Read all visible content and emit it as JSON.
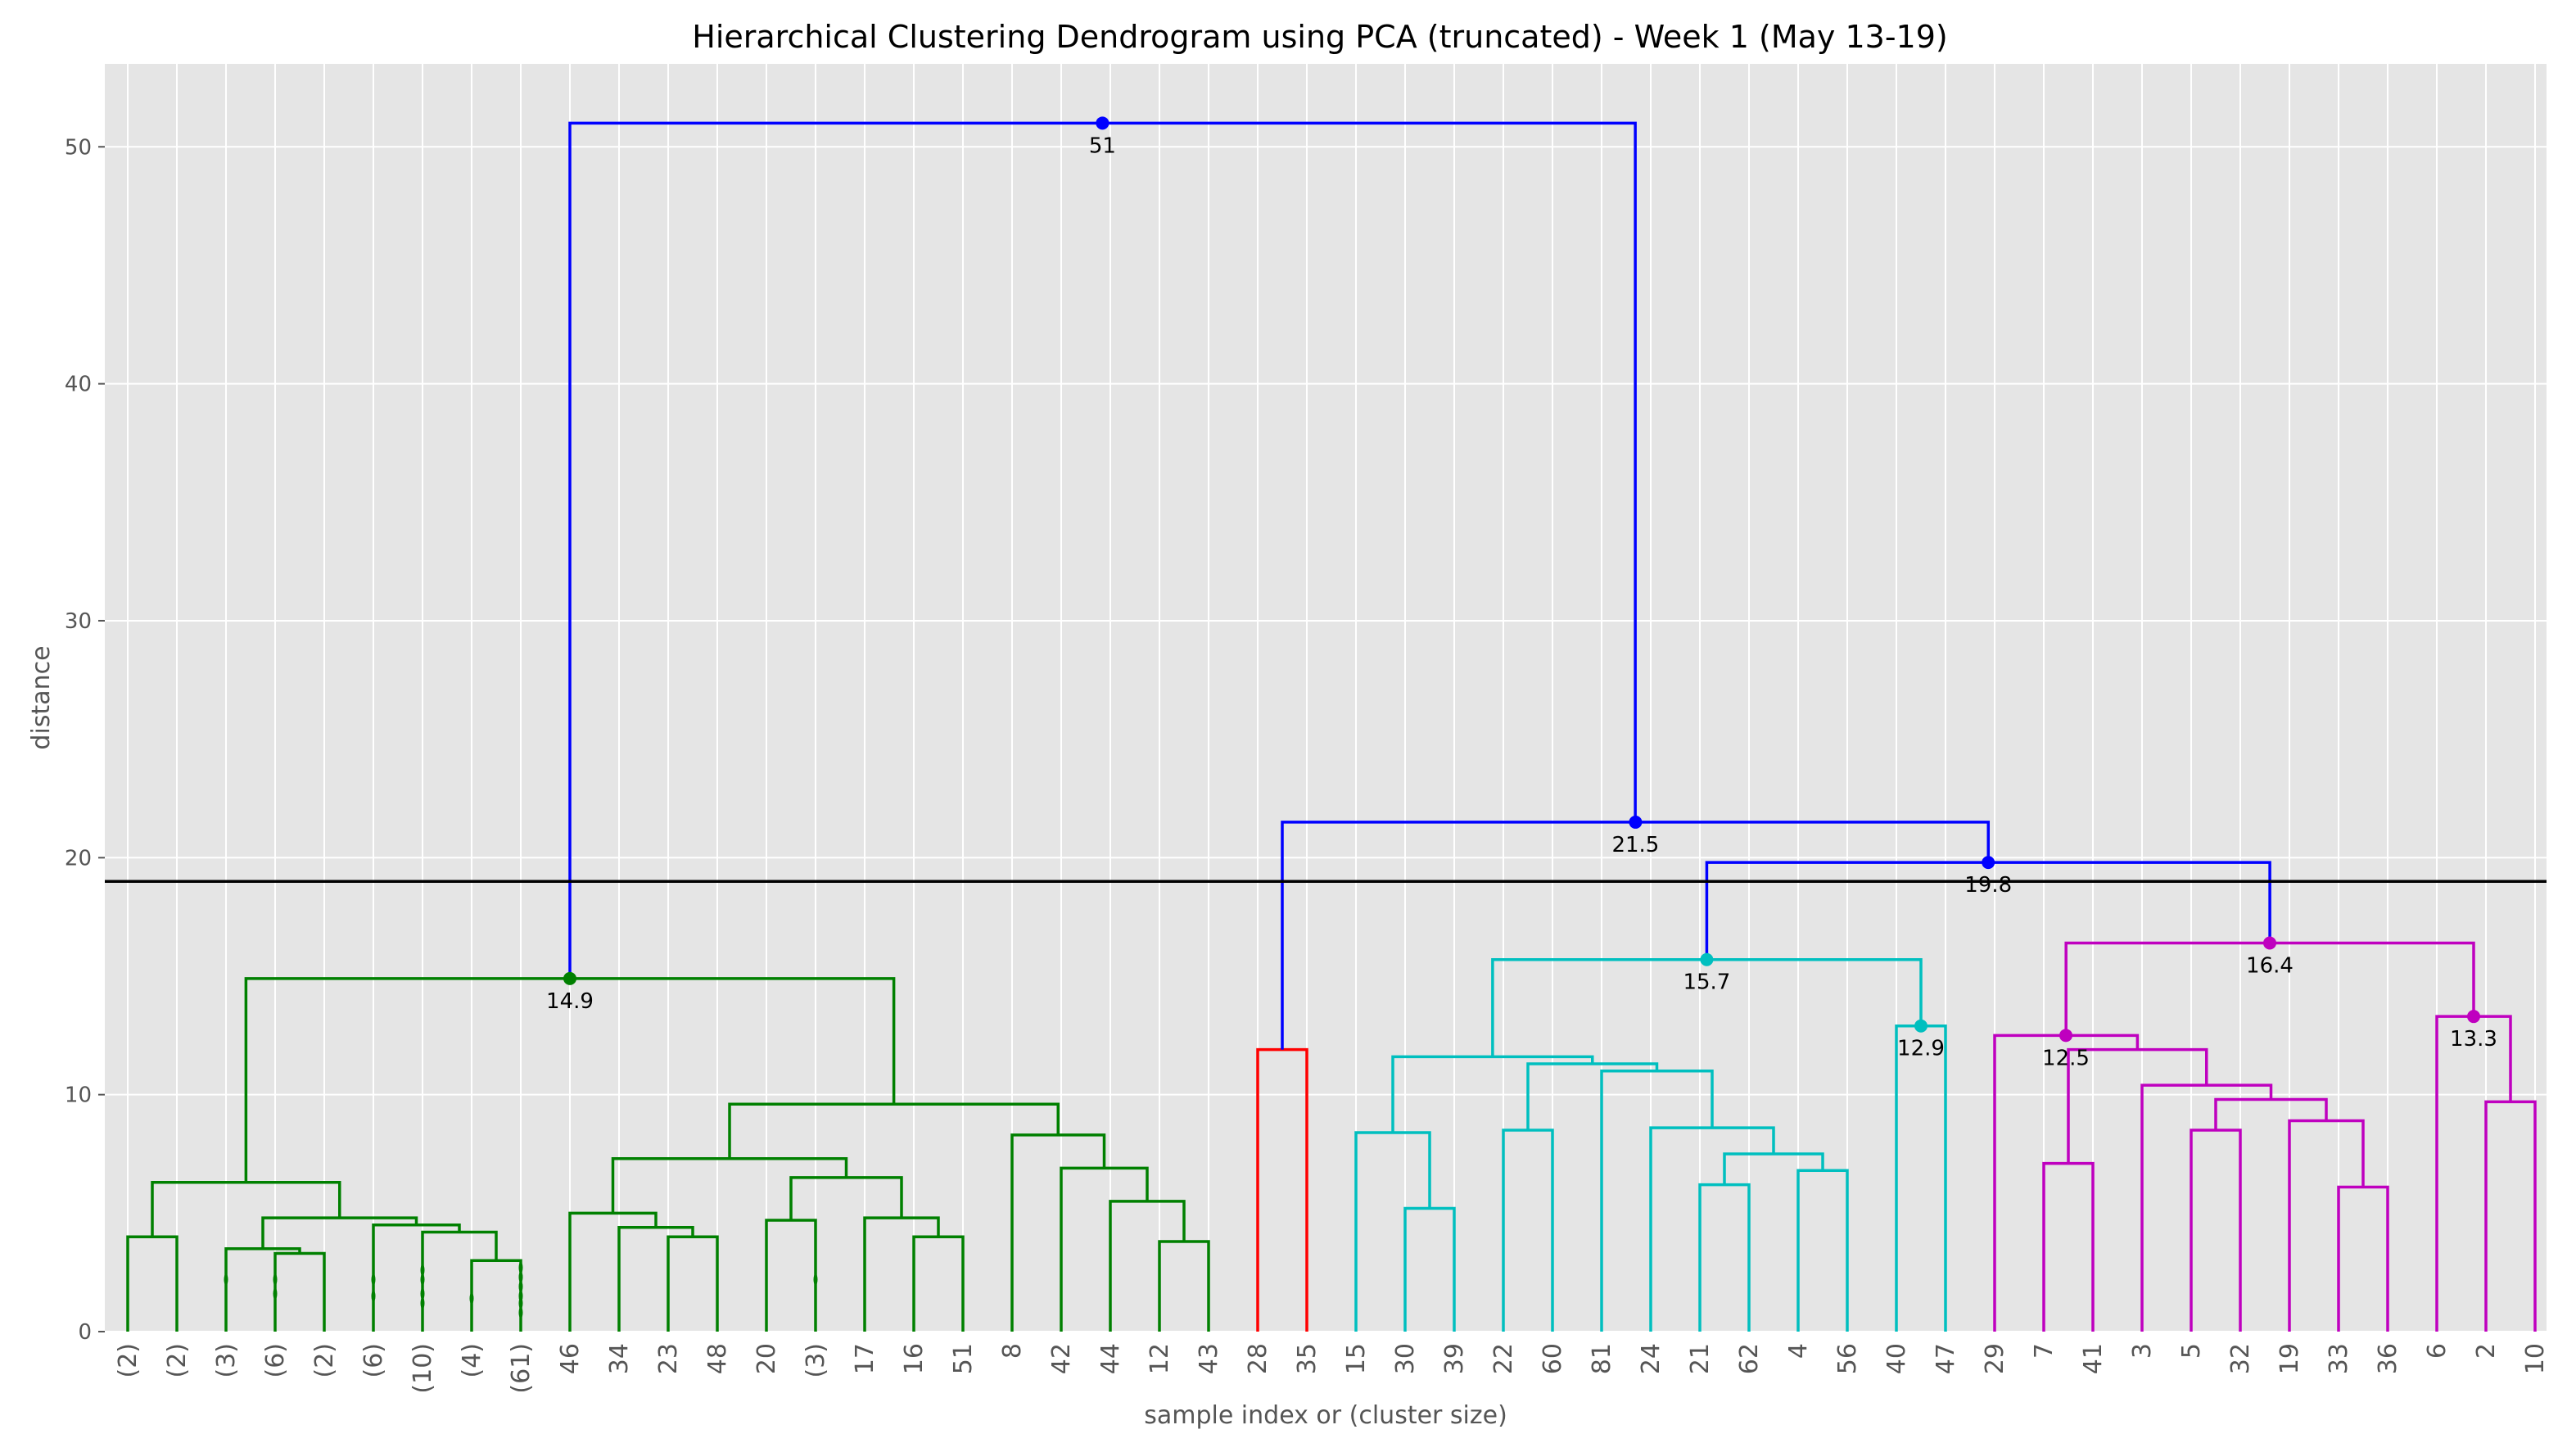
{
  "chart_data": {
    "type": "dendrogram",
    "title": "Hierarchical Clustering Dendrogram using PCA (truncated) - Week 1 (May 13-19)",
    "xlabel": "sample index or (cluster size)",
    "ylabel": "distance",
    "ylim": [
      0,
      53.5
    ],
    "yticks": [
      0,
      10,
      20,
      30,
      40,
      50
    ],
    "grid": true,
    "cut_line": 19.0,
    "colors": {
      "background": "#e5e5e5",
      "grid": "#ffffff",
      "green": "#008000",
      "red": "#ff0000",
      "cyan": "#00bfbf",
      "magenta": "#bf00bf",
      "blue": "#0000ff",
      "cut_line": "#000000"
    },
    "leaves": [
      "(2)",
      "(2)",
      "(3)",
      "(6)",
      "(2)",
      "(6)",
      "(10)",
      "(4)",
      "(61)",
      "46",
      "34",
      "23",
      "48",
      "20",
      "(3)",
      "17",
      "16",
      "51",
      "8",
      "42",
      "44",
      "12",
      "43",
      "28",
      "35",
      "15",
      "30",
      "39",
      "22",
      "60",
      "81",
      "24",
      "21",
      "62",
      "4",
      "56",
      "40",
      "47",
      "29",
      "7",
      "41",
      "3",
      "5",
      "32",
      "19",
      "33",
      "36",
      "6",
      "2",
      "10"
    ],
    "links": [
      {
        "icoord": [
          0,
          1
        ],
        "height": 4.0,
        "color": "green"
      },
      {
        "icoord": [
          3,
          4
        ],
        "height": 3.3,
        "color": "green"
      },
      {
        "icoord": [
          2,
          3.5
        ],
        "height": 3.5,
        "color": "green"
      },
      {
        "icoord": [
          7,
          8
        ],
        "height": 3.0,
        "color": "green"
      },
      {
        "icoord": [
          6,
          7.5
        ],
        "height": 4.2,
        "color": "green"
      },
      {
        "icoord": [
          5,
          6.75
        ],
        "height": 4.5,
        "color": "green"
      },
      {
        "icoord": [
          2.75,
          5.875
        ],
        "height": 4.8,
        "color": "green"
      },
      {
        "icoord": [
          0.5,
          4.3125
        ],
        "height": 6.3,
        "color": "green"
      },
      {
        "icoord": [
          11,
          12
        ],
        "height": 4.0,
        "color": "green"
      },
      {
        "icoord": [
          10,
          11.5
        ],
        "height": 4.4,
        "color": "green"
      },
      {
        "icoord": [
          9,
          10.75
        ],
        "height": 5.0,
        "color": "green"
      },
      {
        "icoord": [
          13,
          14
        ],
        "height": 4.7,
        "color": "green"
      },
      {
        "icoord": [
          16,
          17
        ],
        "height": 4.0,
        "color": "green"
      },
      {
        "icoord": [
          15,
          16.5
        ],
        "height": 4.8,
        "color": "green"
      },
      {
        "icoord": [
          13.5,
          15.75
        ],
        "height": 6.5,
        "color": "green"
      },
      {
        "icoord": [
          9.875,
          14.625
        ],
        "height": 7.3,
        "color": "green"
      },
      {
        "icoord": [
          21,
          22
        ],
        "height": 3.8,
        "color": "green"
      },
      {
        "icoord": [
          20,
          21.5
        ],
        "height": 5.5,
        "color": "green"
      },
      {
        "icoord": [
          19,
          20.75
        ],
        "height": 6.9,
        "color": "green"
      },
      {
        "icoord": [
          18,
          19.875
        ],
        "height": 8.3,
        "color": "green"
      },
      {
        "icoord": [
          12.25,
          18.9375
        ],
        "height": 9.6,
        "color": "green"
      },
      {
        "icoord": [
          2.40625,
          15.59375
        ],
        "height": 14.9,
        "color": "green"
      },
      {
        "icoord": [
          23,
          24
        ],
        "height": 11.9,
        "color": "red"
      },
      {
        "icoord": [
          26,
          27
        ],
        "height": 5.2,
        "color": "cyan"
      },
      {
        "icoord": [
          25,
          26.5
        ],
        "height": 8.4,
        "color": "cyan"
      },
      {
        "icoord": [
          28,
          29
        ],
        "height": 8.5,
        "color": "cyan"
      },
      {
        "icoord": [
          32,
          33
        ],
        "height": 6.2,
        "color": "cyan"
      },
      {
        "icoord": [
          34,
          35
        ],
        "height": 6.8,
        "color": "cyan"
      },
      {
        "icoord": [
          32.5,
          34.5
        ],
        "height": 7.5,
        "color": "cyan"
      },
      {
        "icoord": [
          31,
          33.5
        ],
        "height": 8.6,
        "color": "cyan"
      },
      {
        "icoord": [
          30,
          32.25
        ],
        "height": 11.0,
        "color": "cyan"
      },
      {
        "icoord": [
          28.5,
          31.125
        ],
        "height": 11.3,
        "color": "cyan"
      },
      {
        "icoord": [
          25.75,
          29.8125
        ],
        "height": 11.6,
        "color": "cyan"
      },
      {
        "icoord": [
          36,
          37
        ],
        "height": 12.9,
        "color": "cyan"
      },
      {
        "icoord": [
          27.78125,
          36.5
        ],
        "height": 15.7,
        "color": "cyan"
      },
      {
        "icoord": [
          39,
          40
        ],
        "height": 7.1,
        "color": "magenta"
      },
      {
        "icoord": [
          42,
          43
        ],
        "height": 8.5,
        "color": "magenta"
      },
      {
        "icoord": [
          45,
          46
        ],
        "height": 6.1,
        "color": "magenta"
      },
      {
        "icoord": [
          44,
          45.5
        ],
        "height": 8.9,
        "color": "magenta"
      },
      {
        "icoord": [
          42.5,
          44.75
        ],
        "height": 9.8,
        "color": "magenta"
      },
      {
        "icoord": [
          41,
          43.625
        ],
        "height": 10.4,
        "color": "magenta"
      },
      {
        "icoord": [
          39.5,
          42.3125
        ],
        "height": 11.9,
        "color": "magenta"
      },
      {
        "icoord": [
          38,
          40.90625
        ],
        "height": 12.5,
        "color": "magenta"
      },
      {
        "icoord": [
          48,
          49
        ],
        "height": 9.7,
        "color": "magenta"
      },
      {
        "icoord": [
          47,
          48.5
        ],
        "height": 13.3,
        "color": "magenta"
      },
      {
        "icoord": [
          39.453125,
          47.75
        ],
        "height": 16.4,
        "color": "magenta"
      },
      {
        "icoord": [
          32.140625,
          43.6015625
        ],
        "height": 19.8,
        "color": "blue"
      },
      {
        "icoord": [
          23.5,
          37.87109375
        ],
        "height": 21.5,
        "color": "blue"
      },
      {
        "icoord": [
          9,
          30.685546875
        ],
        "height": 51.0,
        "color": "blue"
      }
    ],
    "annotations": [
      {
        "x": 9,
        "y": 14.9,
        "label": "14.9",
        "color": "green"
      },
      {
        "x": 19.84,
        "y": 51.0,
        "label": "51",
        "color": "blue"
      },
      {
        "x": 30.69,
        "y": 21.5,
        "label": "21.5",
        "color": "blue"
      },
      {
        "x": 37.87,
        "y": 19.8,
        "label": "19.8",
        "color": "blue"
      },
      {
        "x": 32.14,
        "y": 15.7,
        "label": "15.7",
        "color": "cyan"
      },
      {
        "x": 36.5,
        "y": 12.9,
        "label": "12.9",
        "color": "cyan"
      },
      {
        "x": 43.6,
        "y": 16.4,
        "label": "16.4",
        "color": "magenta"
      },
      {
        "x": 39.45,
        "y": 12.5,
        "label": "12.5",
        "color": "magenta"
      },
      {
        "x": 47.75,
        "y": 13.3,
        "label": "13.3",
        "color": "magenta"
      }
    ],
    "truncated_marks": [
      {
        "leaf": 2,
        "heights": [
          2.2
        ]
      },
      {
        "leaf": 3,
        "heights": [
          1.6,
          2.2
        ]
      },
      {
        "leaf": 5,
        "heights": [
          1.5,
          2.2
        ]
      },
      {
        "leaf": 6,
        "heights": [
          1.2,
          1.6,
          2.2,
          2.6
        ]
      },
      {
        "leaf": 7,
        "heights": [
          1.4
        ]
      },
      {
        "leaf": 8,
        "heights": [
          0.8,
          1.2,
          1.5,
          1.9,
          2.3,
          2.7
        ]
      },
      {
        "leaf": 14,
        "heights": [
          2.2
        ]
      }
    ]
  }
}
